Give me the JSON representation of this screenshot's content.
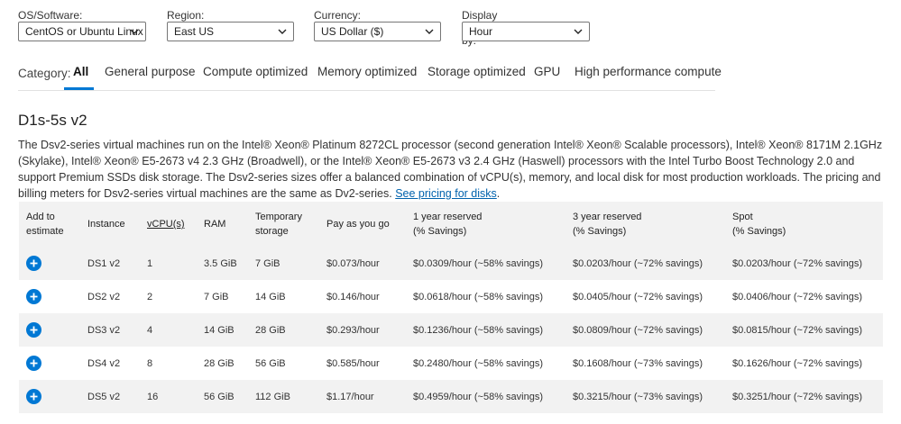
{
  "filters": [
    {
      "label": "OS/Software:",
      "value": "CentOS or Ubuntu Linux"
    },
    {
      "label": "Region:",
      "value": "East US"
    },
    {
      "label": "Currency:",
      "value": "US Dollar ($)"
    },
    {
      "label": "Display pricing by:",
      "value": "Hour"
    }
  ],
  "category": {
    "label": "Category:",
    "tabs": [
      "All",
      "General purpose",
      "Compute optimized",
      "Memory optimized",
      "Storage optimized",
      "GPU",
      "High performance compute"
    ],
    "active": "All"
  },
  "section": {
    "title": "D1s-5s v2",
    "description": "The Dsv2-series virtual machines run on the Intel® Xeon® Platinum 8272CL processor (second generation Intel® Xeon® Scalable processors), Intel® Xeon® 8171M 2.1GHz (Skylake), Intel® Xeon® E5-2673 v4 2.3 GHz (Broadwell), or the Intel® Xeon® E5-2673 v3 2.4 GHz (Haswell) processors with the Intel Turbo Boost Technology 2.0 and support Premium SSDs disk storage. The Dsv2-series sizes offer a balanced combination of vCPU(s), memory, and local disk for most production workloads. The pricing and billing meters for Dsv2-series virtual machines are the same as Dv2-series.",
    "link_text": "See pricing for disks",
    "link_suffix": "."
  },
  "table": {
    "headers": {
      "add": [
        "Add to",
        "estimate"
      ],
      "instance": "Instance",
      "vcpu": "vCPU(s)",
      "ram": "RAM",
      "storage": [
        "Temporary",
        "storage"
      ],
      "payg": "Pay as you go",
      "one_year": [
        "1 year reserved",
        "(% Savings)"
      ],
      "three_year": [
        "3 year reserved",
        "(% Savings)"
      ],
      "spot": [
        "Spot",
        "(% Savings)"
      ]
    },
    "rows": [
      {
        "instance": "DS1 v2",
        "vcpu": "1",
        "ram": "3.5 GiB",
        "storage": "7 GiB",
        "payg": "$0.073/hour",
        "one_year": "$0.0309/hour (~58% savings)",
        "three_year": "$0.0203/hour (~72% savings)",
        "spot": "$0.0203/hour (~72% savings)"
      },
      {
        "instance": "DS2 v2",
        "vcpu": "2",
        "ram": "7 GiB",
        "storage": "14 GiB",
        "payg": "$0.146/hour",
        "one_year": "$0.0618/hour (~58% savings)",
        "three_year": "$0.0405/hour (~72% savings)",
        "spot": "$0.0406/hour (~72% savings)"
      },
      {
        "instance": "DS3 v2",
        "vcpu": "4",
        "ram": "14 GiB",
        "storage": "28 GiB",
        "payg": "$0.293/hour",
        "one_year": "$0.1236/hour (~58% savings)",
        "three_year": "$0.0809/hour (~72% savings)",
        "spot": "$0.0815/hour (~72% savings)"
      },
      {
        "instance": "DS4 v2",
        "vcpu": "8",
        "ram": "28 GiB",
        "storage": "56 GiB",
        "payg": "$0.585/hour",
        "one_year": "$0.2480/hour (~58% savings)",
        "three_year": "$0.1608/hour (~73% savings)",
        "spot": "$0.1626/hour (~72% savings)"
      },
      {
        "instance": "DS5 v2",
        "vcpu": "16",
        "ram": "56 GiB",
        "storage": "112 GiB",
        "payg": "$1.17/hour",
        "one_year": "$0.4959/hour (~58% savings)",
        "three_year": "$0.3215/hour (~73% savings)",
        "spot": "$0.3251/hour (~72% savings)"
      }
    ]
  },
  "icons": {
    "add": "plus-circle-icon",
    "dropdown": "chevron-down-icon"
  },
  "colors": {
    "accent": "#0078d4",
    "link": "#0062ad",
    "row_alt": "#f2f2f2"
  }
}
